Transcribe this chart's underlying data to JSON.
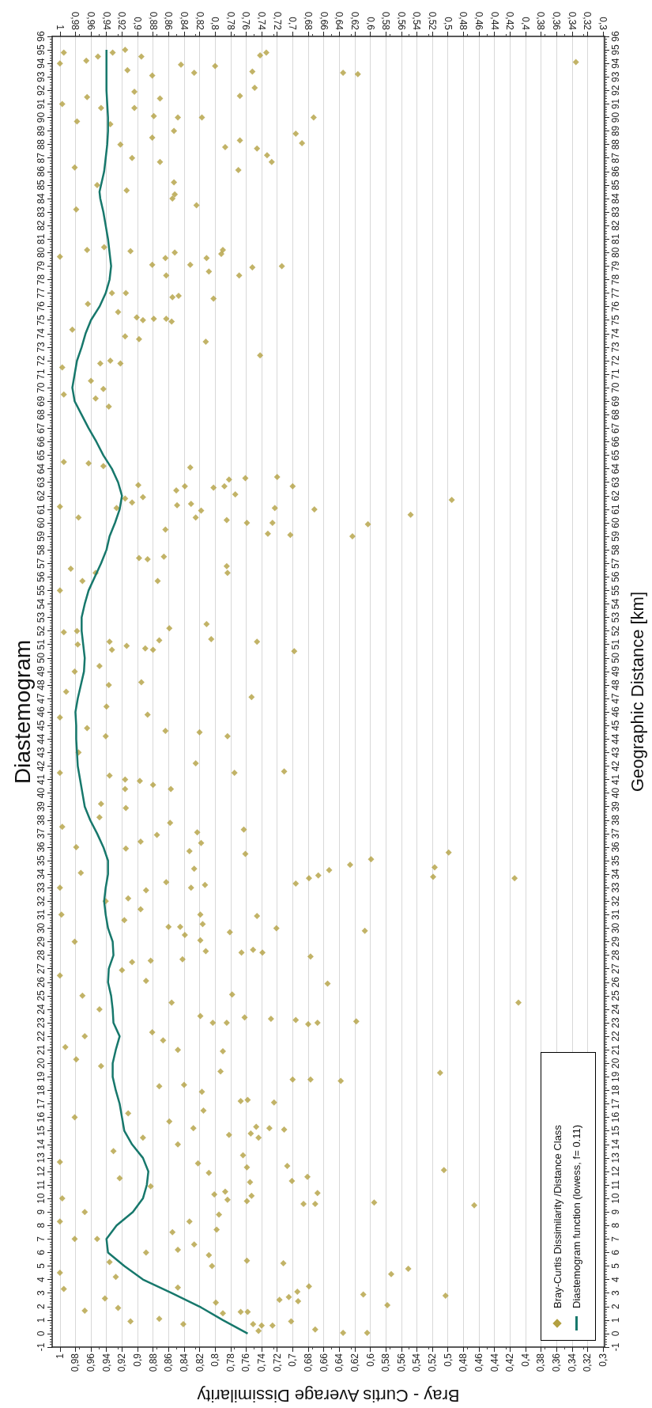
{
  "chart_data": {
    "type": "scatter",
    "title": "Diastemogram",
    "xlabel": "Bray - Curtis Average Dissimilarity",
    "y2label": "Geographic Distance [km]",
    "legend": "bottom right",
    "grid": "x",
    "ylim": [
      -1,
      96
    ],
    "yticks": [
      -1,
      0,
      1,
      2,
      3,
      4,
      5,
      6,
      7,
      8,
      9,
      10,
      11,
      12,
      13,
      14,
      15,
      16,
      17,
      18,
      19,
      20,
      21,
      22,
      23,
      24,
      25,
      26,
      27,
      28,
      29,
      30,
      31,
      32,
      33,
      34,
      35,
      36,
      37,
      38,
      39,
      40,
      41,
      42,
      43,
      44,
      45,
      46,
      47,
      48,
      49,
      50,
      51,
      52,
      53,
      54,
      55,
      56,
      57,
      58,
      59,
      60,
      61,
      62,
      63,
      64,
      65,
      66,
      67,
      68,
      69,
      70,
      71,
      72,
      73,
      74,
      75,
      76,
      77,
      78,
      79,
      80,
      81,
      82,
      83,
      84,
      85,
      86,
      87,
      88,
      89,
      90,
      91,
      92,
      93,
      94,
      95,
      96
    ],
    "y2lim": [
      -1,
      96
    ],
    "y2ticks": [
      -1,
      0,
      1,
      2,
      3,
      4,
      5,
      6,
      7,
      8,
      9,
      10,
      11,
      12,
      13,
      14,
      15,
      16,
      17,
      18,
      19,
      20,
      21,
      22,
      23,
      24,
      25,
      26,
      27,
      28,
      29,
      30,
      31,
      32,
      33,
      34,
      35,
      36,
      37,
      38,
      39,
      40,
      41,
      42,
      43,
      44,
      45,
      46,
      47,
      48,
      49,
      50,
      51,
      52,
      53,
      54,
      55,
      56,
      57,
      58,
      59,
      60,
      61,
      62,
      63,
      64,
      65,
      66,
      67,
      68,
      69,
      70,
      71,
      72,
      73,
      74,
      75,
      76,
      77,
      78,
      79,
      80,
      81,
      82,
      83,
      84,
      85,
      86,
      87,
      88,
      89,
      90,
      91,
      92,
      93,
      94,
      95,
      96
    ],
    "xlim": [
      1.01,
      0.298
    ],
    "xticks": [
      1,
      {
        "value": 0.98,
        "label": "0,98"
      },
      {
        "value": 0.96,
        "label": "0,96"
      },
      {
        "value": 0.94,
        "label": "0,94"
      },
      {
        "value": 0.92,
        "label": "0,92"
      },
      {
        "value": 0.9,
        "label": "0,9"
      },
      {
        "value": 0.88,
        "label": "0,88"
      },
      {
        "value": 0.86,
        "label": "0,86"
      },
      {
        "value": 0.84,
        "label": "0,84"
      },
      {
        "value": 0.82,
        "label": "0,82"
      },
      {
        "value": 0.8,
        "label": "0,8"
      },
      {
        "value": 0.78,
        "label": "0,78"
      },
      {
        "value": 0.76,
        "label": "0,76"
      },
      {
        "value": 0.74,
        "label": "0,74"
      },
      {
        "value": 0.72,
        "label": "0,72"
      },
      {
        "value": 0.7,
        "label": "0,7"
      },
      {
        "value": 0.68,
        "label": "0,68"
      },
      {
        "value": 0.66,
        "label": "0,66"
      },
      {
        "value": 0.64,
        "label": "0,64"
      },
      {
        "value": 0.62,
        "label": "0,62"
      },
      {
        "value": 0.6,
        "label": "0,6"
      },
      {
        "value": 0.58,
        "label": "0,58"
      },
      {
        "value": 0.56,
        "label": "0,56"
      },
      {
        "value": 0.54,
        "label": "0,54"
      },
      {
        "value": 0.52,
        "label": "0,52"
      },
      {
        "value": 0.5,
        "label": "0,5"
      },
      {
        "value": 0.48,
        "label": "0,48"
      },
      {
        "value": 0.46,
        "label": "0,46"
      },
      {
        "value": 0.44,
        "label": "0,44"
      },
      {
        "value": 0.42,
        "label": "0,42"
      },
      {
        "value": 0.4,
        "label": "0,4"
      },
      {
        "value": 0.38,
        "label": "0,38"
      },
      {
        "value": 0.36,
        "label": "0,36"
      },
      {
        "value": 0.34,
        "label": "0,34"
      },
      {
        "value": 0.32,
        "label": "0,32"
      },
      {
        "value": 0.3,
        "label": "0,3"
      }
    ],
    "x2lim": [
      1.01,
      0.298
    ],
    "x2ticks": [
      1,
      {
        "value": 0.98,
        "label": "0,98"
      },
      {
        "value": 0.96,
        "label": "0,96"
      },
      {
        "value": 0.94,
        "label": "0,94"
      },
      {
        "value": 0.92,
        "label": "0,92"
      },
      {
        "value": 0.9,
        "label": "0,9"
      },
      {
        "value": 0.88,
        "label": "0,88"
      },
      {
        "value": 0.86,
        "label": "0,86"
      },
      {
        "value": 0.84,
        "label": "0,84"
      },
      {
        "value": 0.82,
        "label": "0,82"
      },
      {
        "value": 0.8,
        "label": "0,8"
      },
      {
        "value": 0.78,
        "label": "0,78"
      },
      {
        "value": 0.76,
        "label": "0,76"
      },
      {
        "value": 0.74,
        "label": "0,74"
      },
      {
        "value": 0.72,
        "label": "0,72"
      },
      {
        "value": 0.7,
        "label": "0,7"
      },
      {
        "value": 0.68,
        "label": "0,68"
      },
      {
        "value": 0.66,
        "label": "0,66"
      },
      {
        "value": 0.64,
        "label": "0,64"
      },
      {
        "value": 0.62,
        "label": "0,62"
      },
      {
        "value": 0.6,
        "label": "0,6"
      },
      {
        "value": 0.58,
        "label": "0,58"
      },
      {
        "value": 0.56,
        "label": "0,56"
      },
      {
        "value": 0.54,
        "label": "0,54"
      },
      {
        "value": 0.52,
        "label": "0,52"
      },
      {
        "value": 0.5,
        "label": "0,5"
      },
      {
        "value": 0.48,
        "label": "0,48"
      },
      {
        "value": 0.46,
        "label": "0,46"
      },
      {
        "value": 0.44,
        "label": "0,44"
      },
      {
        "value": 0.42,
        "label": "0,42"
      },
      {
        "value": 0.4,
        "label": "0,4"
      },
      {
        "value": 0.38,
        "label": "0,38"
      },
      {
        "value": 0.36,
        "label": "0,36"
      },
      {
        "value": 0.34,
        "label": "0,34"
      },
      {
        "value": 0.32,
        "label": "0,32"
      },
      {
        "value": 0.3,
        "label": "0,3"
      }
    ],
    "series": [
      {
        "name": "Bray-Curtis Dissimilarity /Distance Class",
        "type": "scatter",
        "marker": "diamond",
        "color": "#b3a041",
        "values": [
          94.8,
          94,
          94.2,
          94.5,
          94.8,
          95,
          94.5,
          94.6,
          94.8,
          93.9,
          93.8,
          93.5,
          93.4,
          93.3,
          93.1,
          93.3,
          93.2,
          94.1,
          92.2,
          91.6,
          91.4,
          91.9,
          91.5,
          91,
          90.7,
          90.7,
          90.1,
          90,
          90,
          90,
          89.7,
          89.5,
          89,
          88.8,
          88.5,
          88.3,
          88.1,
          88,
          87.8,
          87.7,
          87.2,
          86.7,
          87,
          86.7,
          86.1,
          85.2,
          84.6,
          84.3,
          83.5,
          84,
          85,
          86.3,
          83.2,
          80.2,
          79.9,
          80,
          79.6,
          79.6,
          79,
          78.9,
          78.3,
          78.6,
          78.3,
          79.1,
          79.1,
          80.1,
          80.2,
          79.7,
          80.4,
          76.8,
          76.7,
          76.6,
          77,
          77,
          76.2,
          75.6,
          75.2,
          75,
          75.1,
          75.1,
          74.9,
          73.4,
          73.6,
          73.8,
          72.4,
          71.8,
          72,
          71.8,
          69.9,
          68.6,
          69.2,
          70.5,
          74.3,
          71.5,
          69.5,
          64.5,
          64.4,
          64.2,
          64.1,
          63.4,
          63.3,
          63.2,
          62.8,
          62.7,
          62.6,
          62.7,
          62.7,
          62.4,
          62.1,
          61.7,
          61.8,
          61.9,
          61.5,
          61.3,
          61.4,
          61.1,
          61,
          60.6,
          60.9,
          60.4,
          60.2,
          60,
          60,
          59.9,
          59.5,
          59.2,
          59.1,
          59,
          60.4,
          61.2,
          61.1,
          57.5,
          57.4,
          57.3,
          56.8,
          56.3,
          55.7,
          56.3,
          55.7,
          55,
          56.6,
          52.5,
          52.2,
          51.9,
          52,
          51.4,
          51.2,
          51.3,
          51.2,
          50.6,
          50.9,
          50.7,
          50.6,
          50.5,
          51,
          49.4,
          48.2,
          48,
          47.1,
          46.4,
          45.8,
          45.6,
          44.6,
          44.5,
          44.2,
          44.2,
          44.8,
          42.2,
          41.5,
          41.6,
          41.3,
          41,
          40.9,
          40.6,
          40.3,
          40.3,
          41.5,
          43,
          47.5,
          49,
          39.2,
          38.9,
          37.8,
          37.3,
          37.1,
          36.9,
          36.3,
          36.4,
          35.9,
          35.7,
          35.6,
          35.5,
          35.1,
          34.7,
          34.5,
          34.4,
          34.3,
          33.9,
          33.8,
          33.7,
          33.7,
          33.3,
          33.4,
          33.2,
          33,
          32.8,
          32.2,
          31.4,
          30.9,
          31,
          30.3,
          30.1,
          30.1,
          30,
          29.8,
          29.7,
          29.5,
          29.1,
          28.4,
          28.2,
          28.2,
          28.3,
          27.9,
          27.7,
          27.6,
          27.5,
          26.9,
          26.1,
          25.9,
          25.1,
          24.5,
          24.5,
          23.5,
          23.4,
          23.3,
          23.2,
          23,
          23.1,
          22.9,
          23,
          23,
          22.3,
          21.7,
          21,
          20.9,
          19.4,
          19.3,
          18.8,
          18.8,
          18.7,
          33,
          31,
          32,
          30.6,
          29,
          26.5,
          25,
          24,
          22,
          21.2,
          20.3,
          19.8,
          37.5,
          36,
          38.2,
          34.1,
          18.3,
          18.4,
          17.9,
          17.3,
          17.2,
          17.1,
          16.5,
          15.7,
          15.2,
          15.2,
          15.1,
          15.3,
          14.8,
          14.5,
          14.7,
          14,
          13.2,
          12.6,
          12.3,
          12.4,
          12.1,
          11.9,
          11.6,
          11.3,
          11.2,
          10.4,
          10.3,
          10.2,
          10.5,
          9.7,
          9.5,
          9.6,
          9.6,
          9.8,
          9.9,
          8.8,
          8.3,
          7.7,
          7.5,
          6.6,
          6.2,
          5.8,
          5.4,
          5.2,
          5,
          4.8,
          4.4,
          3.5,
          3.1,
          2.8,
          2.9,
          2.7,
          2.5,
          2.4,
          2.1,
          2.3,
          1.6,
          1.5,
          1.6,
          0.9,
          0.7,
          0.6,
          0.6,
          0.3,
          0.2,
          0.05,
          0.05,
          0.7,
          0.9,
          1.9,
          1.1,
          3.3,
          4.5,
          8.3,
          7,
          10,
          12.7,
          16,
          13.5,
          11.5,
          9,
          7,
          3.4,
          2.6,
          1.7,
          5.3,
          4.2,
          10.9,
          6,
          14.5,
          16.3
        ],
        "x": [
          0.995,
          1.0,
          0.966,
          0.951,
          0.932,
          0.916,
          0.895,
          0.742,
          0.734,
          0.844,
          0.8,
          0.913,
          0.752,
          0.827,
          0.881,
          0.635,
          0.616,
          0.335,
          0.749,
          0.768,
          0.871,
          0.904,
          0.965,
          0.997,
          0.947,
          0.904,
          0.879,
          0.848,
          0.817,
          0.673,
          0.978,
          0.935,
          0.853,
          0.696,
          0.881,
          0.768,
          0.688,
          0.922,
          0.787,
          0.746,
          0.733,
          0.727,
          0.907,
          0.871,
          0.77,
          0.853,
          0.914,
          0.852,
          0.824,
          0.855,
          0.952,
          0.981,
          0.979,
          0.79,
          0.792,
          0.852,
          0.864,
          0.811,
          0.714,
          0.752,
          0.769,
          0.808,
          0.863,
          0.881,
          0.832,
          0.909,
          0.965,
          1.0,
          0.943,
          0.847,
          0.855,
          0.802,
          0.915,
          0.933,
          0.964,
          0.925,
          0.901,
          0.893,
          0.879,
          0.863,
          0.856,
          0.812,
          0.898,
          0.916,
          0.742,
          0.922,
          0.935,
          0.948,
          0.944,
          0.937,
          0.954,
          0.96,
          0.984,
          0.997,
          0.995,
          0.995,
          0.963,
          0.944,
          0.832,
          0.72,
          0.761,
          0.782,
          0.899,
          0.839,
          0.802,
          0.788,
          0.7,
          0.85,
          0.774,
          0.495,
          0.916,
          0.893,
          0.907,
          0.849,
          0.831,
          0.723,
          0.672,
          0.548,
          0.818,
          0.825,
          0.785,
          0.759,
          0.726,
          0.603,
          0.864,
          0.732,
          0.703,
          0.623,
          0.976,
          1.0,
          0.927,
          0.866,
          0.898,
          0.887,
          0.785,
          0.784,
          0.874,
          0.954,
          0.971,
          1.0,
          0.986,
          0.811,
          0.859,
          0.995,
          0.978,
          0.805,
          0.746,
          0.872,
          0.936,
          0.933,
          0.914,
          0.89,
          0.88,
          0.698,
          0.977,
          0.949,
          0.895,
          0.937,
          0.753,
          0.94,
          0.887,
          1.0,
          0.864,
          0.82,
          0.784,
          0.941,
          0.965,
          0.825,
          0.775,
          0.711,
          0.936,
          0.916,
          0.897,
          0.88,
          0.916,
          0.857,
          1.0,
          0.976,
          0.992,
          0.981,
          0.947,
          0.915,
          0.858,
          0.763,
          0.823,
          0.875,
          0.818,
          0.896,
          0.915,
          0.833,
          0.499,
          0.761,
          0.599,
          0.626,
          0.517,
          0.827,
          0.653,
          0.667,
          0.519,
          0.414,
          0.679,
          0.696,
          0.863,
          0.813,
          0.831,
          0.889,
          0.912,
          0.896,
          0.746,
          0.819,
          0.816,
          0.86,
          0.845,
          0.721,
          0.607,
          0.781,
          0.839,
          0.819,
          0.751,
          0.739,
          0.766,
          0.812,
          0.677,
          0.842,
          0.883,
          0.907,
          0.92,
          0.889,
          0.655,
          0.778,
          0.409,
          0.856,
          0.819,
          0.762,
          0.728,
          0.696,
          0.668,
          0.618,
          0.68,
          0.803,
          0.785,
          0.881,
          0.867,
          0.848,
          0.79,
          0.793,
          0.51,
          0.7,
          0.677,
          0.638,
          1.0,
          0.998,
          0.941,
          0.917,
          0.981,
          1.0,
          0.971,
          0.949,
          0.968,
          0.993,
          0.979,
          0.947,
          0.997,
          0.979,
          0.949,
          0.973,
          0.872,
          0.84,
          0.817,
          0.758,
          0.767,
          0.724,
          0.815,
          0.859,
          0.828,
          0.73,
          0.711,
          0.747,
          0.754,
          0.744,
          0.782,
          0.848,
          0.764,
          0.822,
          0.759,
          0.707,
          0.505,
          0.808,
          0.681,
          0.701,
          0.755,
          0.668,
          0.801,
          0.753,
          0.787,
          0.595,
          0.466,
          0.686,
          0.671,
          0.759,
          0.784,
          0.795,
          0.833,
          0.798,
          0.855,
          0.827,
          0.848,
          0.808,
          0.759,
          0.712,
          0.804,
          0.551,
          0.573,
          0.679,
          0.694,
          0.503,
          0.609,
          0.705,
          0.717,
          0.693,
          0.578,
          0.799,
          0.767,
          0.79,
          0.758,
          0.702,
          0.751,
          0.726,
          0.74,
          0.671,
          0.744,
          0.635,
          0.604,
          0.841,
          0.909,
          0.925,
          0.872,
          0.995,
          1.0,
          1.0,
          0.981,
          0.997,
          1.0,
          0.981,
          0.931,
          0.923,
          0.968,
          0.952,
          0.848,
          0.942,
          0.968,
          0.936,
          0.928,
          0.883,
          0.889,
          0.893,
          0.912
        ]
      },
      {
        "name": "Diastemogram function (lowess, f= 0.11)",
        "type": "line",
        "color": "#17786c",
        "values": [
          0,
          1,
          2,
          3,
          4,
          5,
          6,
          7,
          8,
          9,
          10,
          11,
          12,
          13,
          14,
          15,
          16,
          17,
          18,
          19,
          20,
          21,
          22,
          23,
          24,
          25,
          26,
          27,
          28,
          29,
          30,
          31,
          32,
          33,
          34,
          35,
          36,
          37,
          38,
          39,
          40,
          41,
          42,
          43,
          44,
          45,
          46,
          47,
          48,
          49,
          50,
          51,
          52,
          53,
          54,
          55,
          56,
          57,
          58,
          59,
          60,
          61,
          62,
          63,
          64,
          65,
          66,
          67,
          68,
          69,
          70,
          71,
          72,
          73,
          74,
          75,
          76,
          77,
          78,
          79,
          80,
          81,
          82,
          83,
          84,
          84.5,
          85,
          86,
          87,
          88,
          89,
          90,
          91,
          92,
          93,
          94,
          95
        ],
        "x": [
          0.758,
          0.79,
          0.82,
          0.856,
          0.893,
          0.917,
          0.938,
          0.94,
          0.927,
          0.906,
          0.893,
          0.888,
          0.886,
          0.893,
          0.907,
          0.917,
          0.92,
          0.923,
          0.928,
          0.932,
          0.932,
          0.928,
          0.923,
          0.931,
          0.932,
          0.934,
          0.938,
          0.937,
          0.931,
          0.932,
          0.938,
          0.941,
          0.943,
          0.941,
          0.938,
          0.938,
          0.944,
          0.952,
          0.961,
          0.968,
          0.971,
          0.974,
          0.977,
          0.978,
          0.979,
          0.979,
          0.98,
          0.977,
          0.973,
          0.969,
          0.968,
          0.97,
          0.972,
          0.972,
          0.968,
          0.963,
          0.955,
          0.947,
          0.94,
          0.936,
          0.929,
          0.923,
          0.92,
          0.925,
          0.933,
          0.944,
          0.953,
          0.963,
          0.972,
          0.981,
          0.984,
          0.981,
          0.978,
          0.972,
          0.967,
          0.96,
          0.949,
          0.941,
          0.936,
          0.934,
          0.936,
          0.938,
          0.941,
          0.944,
          0.948,
          0.949,
          0.947,
          0.943,
          0.941,
          0.939,
          0.938,
          0.938,
          0.939,
          0.94,
          0.94,
          0.94,
          0.94
        ]
      }
    ]
  }
}
